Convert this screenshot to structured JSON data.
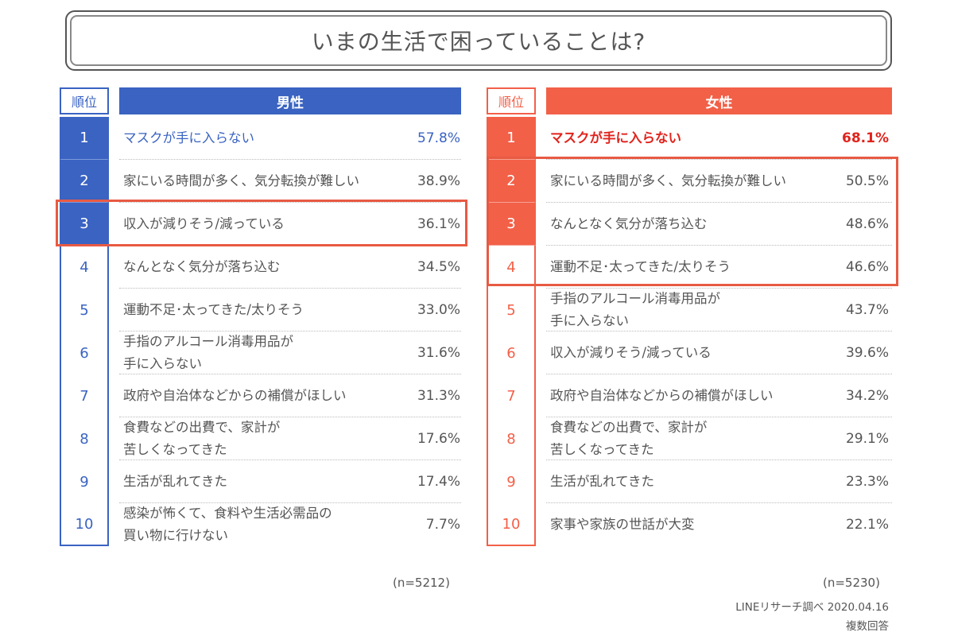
{
  "title": "いまの生活で困っていることは?",
  "chart_data": {
    "type": "table",
    "rank_header": "順位",
    "male": {
      "header": "男性",
      "n": "(n=5212)",
      "rows": [
        {
          "rank": "1",
          "label": "マスクが手に入らない",
          "value": "57.8%"
        },
        {
          "rank": "2",
          "label": "家にいる時間が多く、気分転換が難しい",
          "value": "38.9%"
        },
        {
          "rank": "3",
          "label": "収入が減りそう/減っている",
          "value": "36.1%"
        },
        {
          "rank": "4",
          "label": "なんとなく気分が落ち込む",
          "value": "34.5%"
        },
        {
          "rank": "5",
          "label": "運動不足･太ってきた/太りそう",
          "value": "33.0%"
        },
        {
          "rank": "6",
          "label": "手指のアルコール消毒用品が\n手に入らない",
          "value": "31.6%"
        },
        {
          "rank": "7",
          "label": "政府や自治体などからの補償がほしい",
          "value": "31.3%"
        },
        {
          "rank": "8",
          "label": "食費などの出費で、家計が\n苦しくなってきた",
          "value": "17.6%"
        },
        {
          "rank": "9",
          "label": "生活が乱れてきた",
          "value": "17.4%"
        },
        {
          "rank": "10",
          "label": "感染が怖くて、食料や生活必需品の\n買い物に行けない",
          "value": "7.7%"
        }
      ]
    },
    "female": {
      "header": "女性",
      "n": "(n=5230)",
      "rows": [
        {
          "rank": "1",
          "label": "マスクが手に入らない",
          "value": "68.1%"
        },
        {
          "rank": "2",
          "label": "家にいる時間が多く、気分転換が難しい",
          "value": "50.5%"
        },
        {
          "rank": "3",
          "label": "なんとなく気分が落ち込む",
          "value": "48.6%"
        },
        {
          "rank": "4",
          "label": "運動不足･太ってきた/太りそう",
          "value": "46.6%"
        },
        {
          "rank": "5",
          "label": "手指のアルコール消毒用品が\n手に入らない",
          "value": "43.7%"
        },
        {
          "rank": "6",
          "label": "収入が減りそう/減っている",
          "value": "39.6%"
        },
        {
          "rank": "7",
          "label": "政府や自治体などからの補償がほしい",
          "value": "34.2%"
        },
        {
          "rank": "8",
          "label": "食費などの出費で、家計が\n苦しくなってきた",
          "value": "29.1%"
        },
        {
          "rank": "9",
          "label": "生活が乱れてきた",
          "value": "23.3%"
        },
        {
          "rank": "10",
          "label": "家事や家族の世話が大変",
          "value": "22.1%"
        }
      ]
    }
  },
  "credit": {
    "source": "LINEリサーチ調べ 2020.04.16",
    "note": "複数回答"
  },
  "colors": {
    "male": "#3a63c2",
    "female": "#f26048",
    "highlight_box": "#e85a43"
  }
}
